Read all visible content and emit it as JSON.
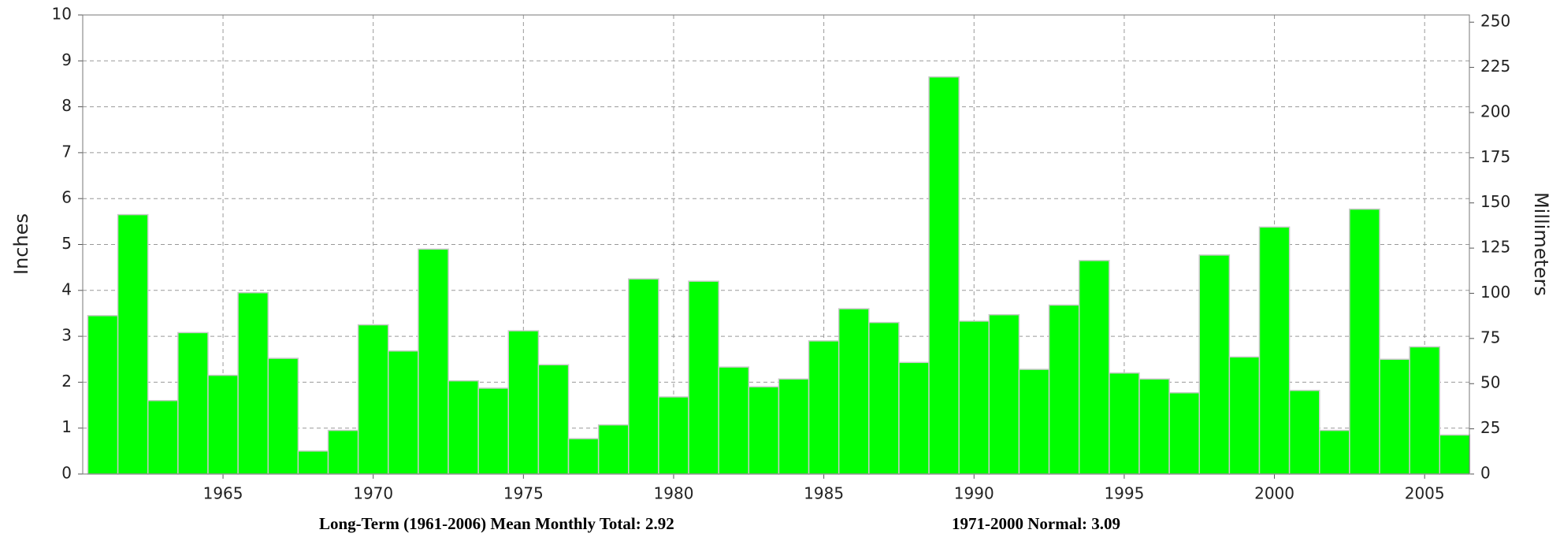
{
  "chart_data": {
    "type": "bar",
    "y_label": "Inches",
    "y2_label": "Millimeters",
    "x": [
      1961,
      1962,
      1963,
      1964,
      1965,
      1966,
      1967,
      1968,
      1969,
      1970,
      1971,
      1972,
      1973,
      1974,
      1975,
      1976,
      1977,
      1978,
      1979,
      1980,
      1981,
      1982,
      1983,
      1984,
      1985,
      1986,
      1987,
      1988,
      1989,
      1990,
      1991,
      1992,
      1993,
      1994,
      1995,
      1996,
      1997,
      1998,
      1999,
      2000,
      2001,
      2002,
      2003,
      2004,
      2005,
      2006
    ],
    "values": [
      3.45,
      5.65,
      1.6,
      3.08,
      2.15,
      3.95,
      2.52,
      0.5,
      0.95,
      3.25,
      2.68,
      4.9,
      2.03,
      1.87,
      3.12,
      2.38,
      0.77,
      1.07,
      4.25,
      1.68,
      4.2,
      2.33,
      1.9,
      2.07,
      2.9,
      3.6,
      3.3,
      2.43,
      8.65,
      3.33,
      3.47,
      2.28,
      3.68,
      4.65,
      2.2,
      2.07,
      1.77,
      4.77,
      2.55,
      5.38,
      1.82,
      0.95,
      5.77,
      2.5,
      2.77,
      0.85
    ],
    "color": "#00ff00",
    "xlim": [
      1960.33,
      2006.49
    ],
    "xticks": [
      1965,
      1970,
      1975,
      1980,
      1985,
      1990,
      1995,
      2000,
      2005
    ],
    "ylim": [
      0,
      10
    ],
    "yticks": [
      0,
      1,
      2,
      3,
      4,
      5,
      6,
      7,
      8,
      9,
      10
    ],
    "y2lim": [
      0,
      254
    ],
    "y2ticks": [
      0,
      25,
      50,
      75,
      100,
      125,
      150,
      175,
      200,
      225,
      250
    ],
    "grid": true,
    "notes": [
      "Long-Term (1961-2006) Mean Monthly Total: 2.92",
      "1971-2000 Normal:  3.09"
    ]
  }
}
